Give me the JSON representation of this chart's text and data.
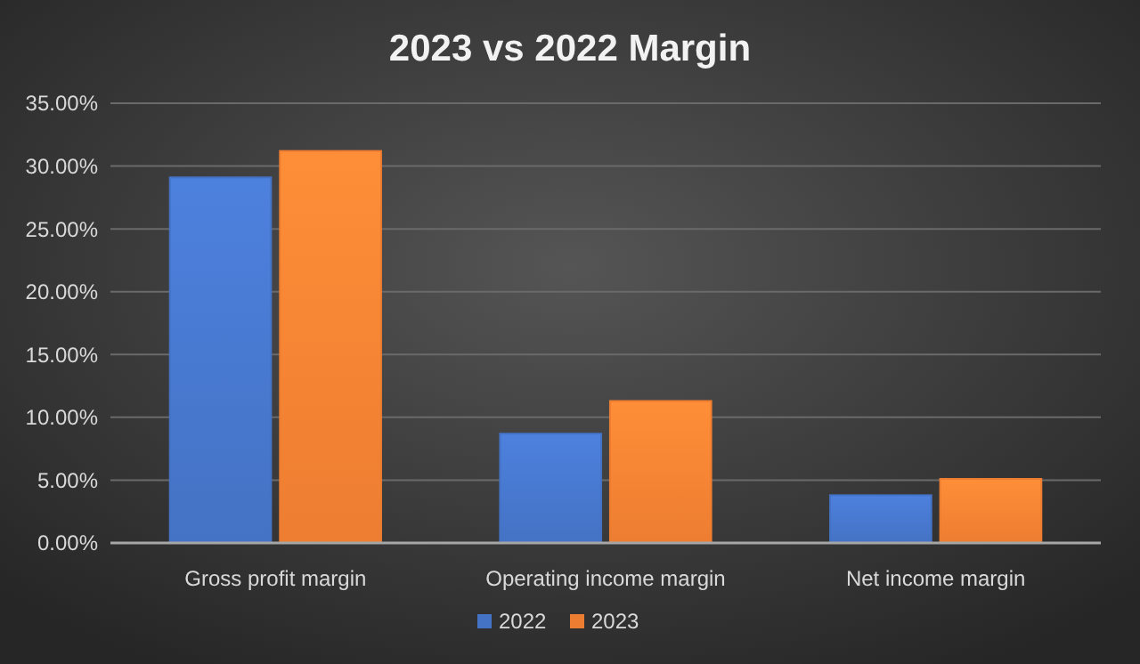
{
  "chart_data": {
    "type": "bar",
    "title": "2023 vs 2022 Margin",
    "categories": [
      "Gross profit margin",
      "Operating income margin",
      "Net income margin"
    ],
    "series": [
      {
        "name": "2022",
        "color": "#4472c4",
        "values": [
          29.1,
          8.7,
          3.8
        ]
      },
      {
        "name": "2023",
        "color": "#ed7d31",
        "values": [
          31.2,
          11.3,
          5.1
        ]
      }
    ],
    "ylim": [
      0,
      35
    ],
    "yticks": [
      {
        "value": 0,
        "label": "0.00%"
      },
      {
        "value": 5,
        "label": "5.00%"
      },
      {
        "value": 10,
        "label": "10.00%"
      },
      {
        "value": 15,
        "label": "15.00%"
      },
      {
        "value": 20,
        "label": "20.00%"
      },
      {
        "value": 25,
        "label": "25.00%"
      },
      {
        "value": 30,
        "label": "30.00%"
      },
      {
        "value": 35,
        "label": "35.00%"
      }
    ],
    "grid": "y",
    "legend": "bottom"
  }
}
